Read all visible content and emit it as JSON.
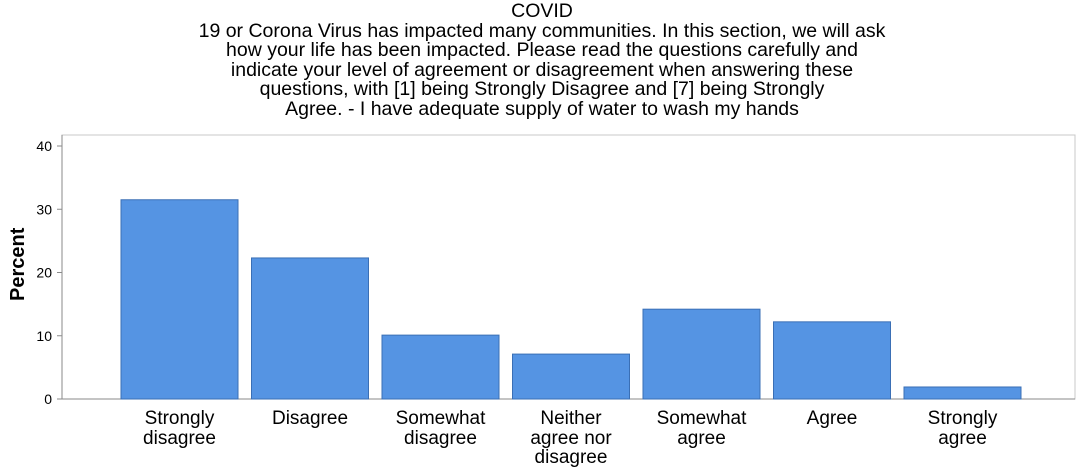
{
  "title_lines": [
    "COVID",
    "19 or Corona Virus has impacted many communities. In this section, we will ask",
    "how your life has been impacted. Please read the questions carefully and",
    "indicate your level of agreement or disagreement when answering these",
    "questions, with [1] being Strongly Disagree and [7] being Strongly",
    "Agree. - I have adequate supply of water to wash my hands"
  ],
  "chart_data": {
    "type": "bar",
    "categories": [
      [
        "Strongly",
        "disagree"
      ],
      [
        "Disagree"
      ],
      [
        "Somewhat",
        "disagree"
      ],
      [
        "Neither",
        "agree nor",
        "disagree"
      ],
      [
        "Somewhat",
        "agree"
      ],
      [
        "Agree"
      ],
      [
        "Strongly",
        "agree"
      ]
    ],
    "values": [
      31.5,
      22.3,
      10.1,
      7.1,
      14.2,
      12.2,
      1.9
    ],
    "ylabel": "Percent",
    "xlabel": "",
    "ylim": [
      0,
      40
    ],
    "yticks": [
      0,
      10,
      20,
      30,
      40
    ],
    "grid": false,
    "colors": {
      "bar_fill": "#5594e3",
      "bar_stroke": "#3a6fb5",
      "axis": "#8a8a8a",
      "frame": "#c8c8c8"
    }
  }
}
